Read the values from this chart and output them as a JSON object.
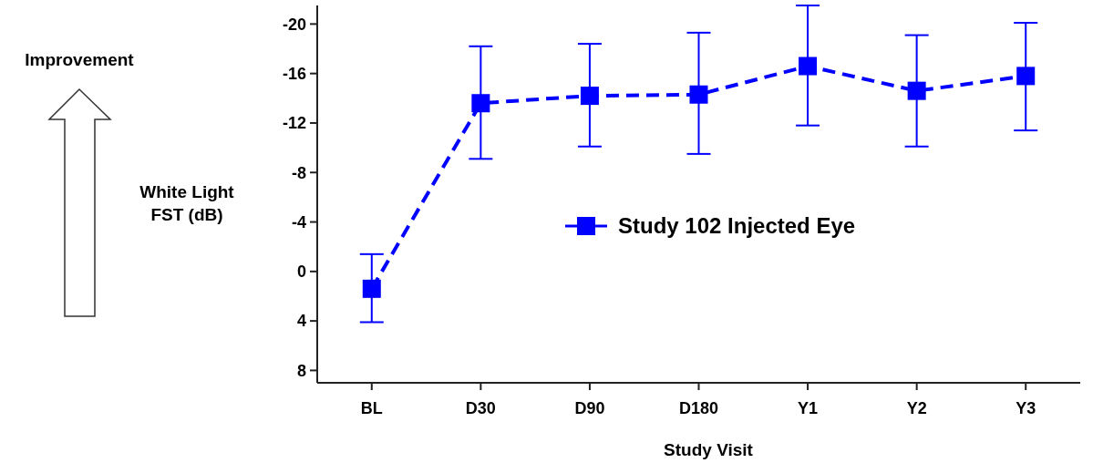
{
  "chart_data": {
    "type": "line",
    "xlabel": "Study Visit",
    "ylabel": "White Light\nFST (dB)",
    "annotations": [
      "Improvement"
    ],
    "categories": [
      "BL",
      "D30",
      "D90",
      "D180",
      "Y1",
      "Y2",
      "Y3"
    ],
    "ylim": [
      9,
      -21.5
    ],
    "yticks": [
      -20,
      -16,
      -12,
      -8,
      -4,
      0,
      4,
      8
    ],
    "series": [
      {
        "name": "Study 102 Injected Eye",
        "color": "#0000ff",
        "values": [
          1.4,
          -13.6,
          -14.2,
          -14.3,
          -16.6,
          -14.6,
          -15.8
        ],
        "errors": [
          [
            -1.4,
            4.1
          ],
          [
            -18.2,
            -9.1
          ],
          [
            -18.4,
            -10.1
          ],
          [
            -19.3,
            -9.5
          ],
          [
            -21.5,
            -11.8
          ],
          [
            -19.1,
            -10.1
          ],
          [
            -20.1,
            -11.4
          ]
        ]
      }
    ],
    "marker": "square",
    "line_style": "dashed",
    "legend": "center",
    "grid": false
  }
}
